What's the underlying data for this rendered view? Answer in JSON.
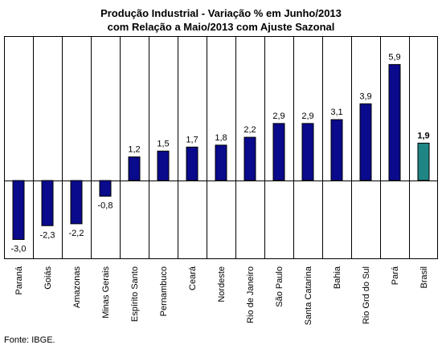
{
  "chart_data": {
    "type": "bar",
    "title_lines": [
      "Produção Industrial - Variação % em Junho/2013",
      "com Relação a Maio/2013 com Ajuste Sazonal"
    ],
    "categories": [
      "Paraná",
      "Goiás",
      "Amazonas",
      "Minas Gerais",
      "Espírito Santo",
      "Pernambuco",
      "Ceará",
      "Nordeste",
      "Rio de Janeiro",
      "São Paulo",
      "Santa Catarina",
      "Bahia",
      "Rio Grd do Sul",
      "Pará",
      "Brasil"
    ],
    "values": [
      -3.0,
      -2.3,
      -2.2,
      -0.8,
      1.2,
      1.5,
      1.7,
      1.8,
      2.2,
      2.9,
      2.9,
      3.1,
      3.9,
      5.9,
      1.9
    ],
    "value_labels": [
      "-3,0",
      "-2,3",
      "-2,2",
      "-0,8",
      "1,2",
      "1,5",
      "1,7",
      "1,8",
      "2,2",
      "2,9",
      "2,9",
      "3,1",
      "3,9",
      "5,9",
      "1,9"
    ],
    "highlight_index": 14,
    "colors": {
      "bar": "#0a0a8c",
      "highlight": "#1f8585",
      "grid": "#000000"
    },
    "ylim": [
      -3.6,
      7.0
    ],
    "grid": "vertical category separators only",
    "xlabel": "",
    "ylabel": ""
  },
  "source_note": "Fonte: IBGE."
}
